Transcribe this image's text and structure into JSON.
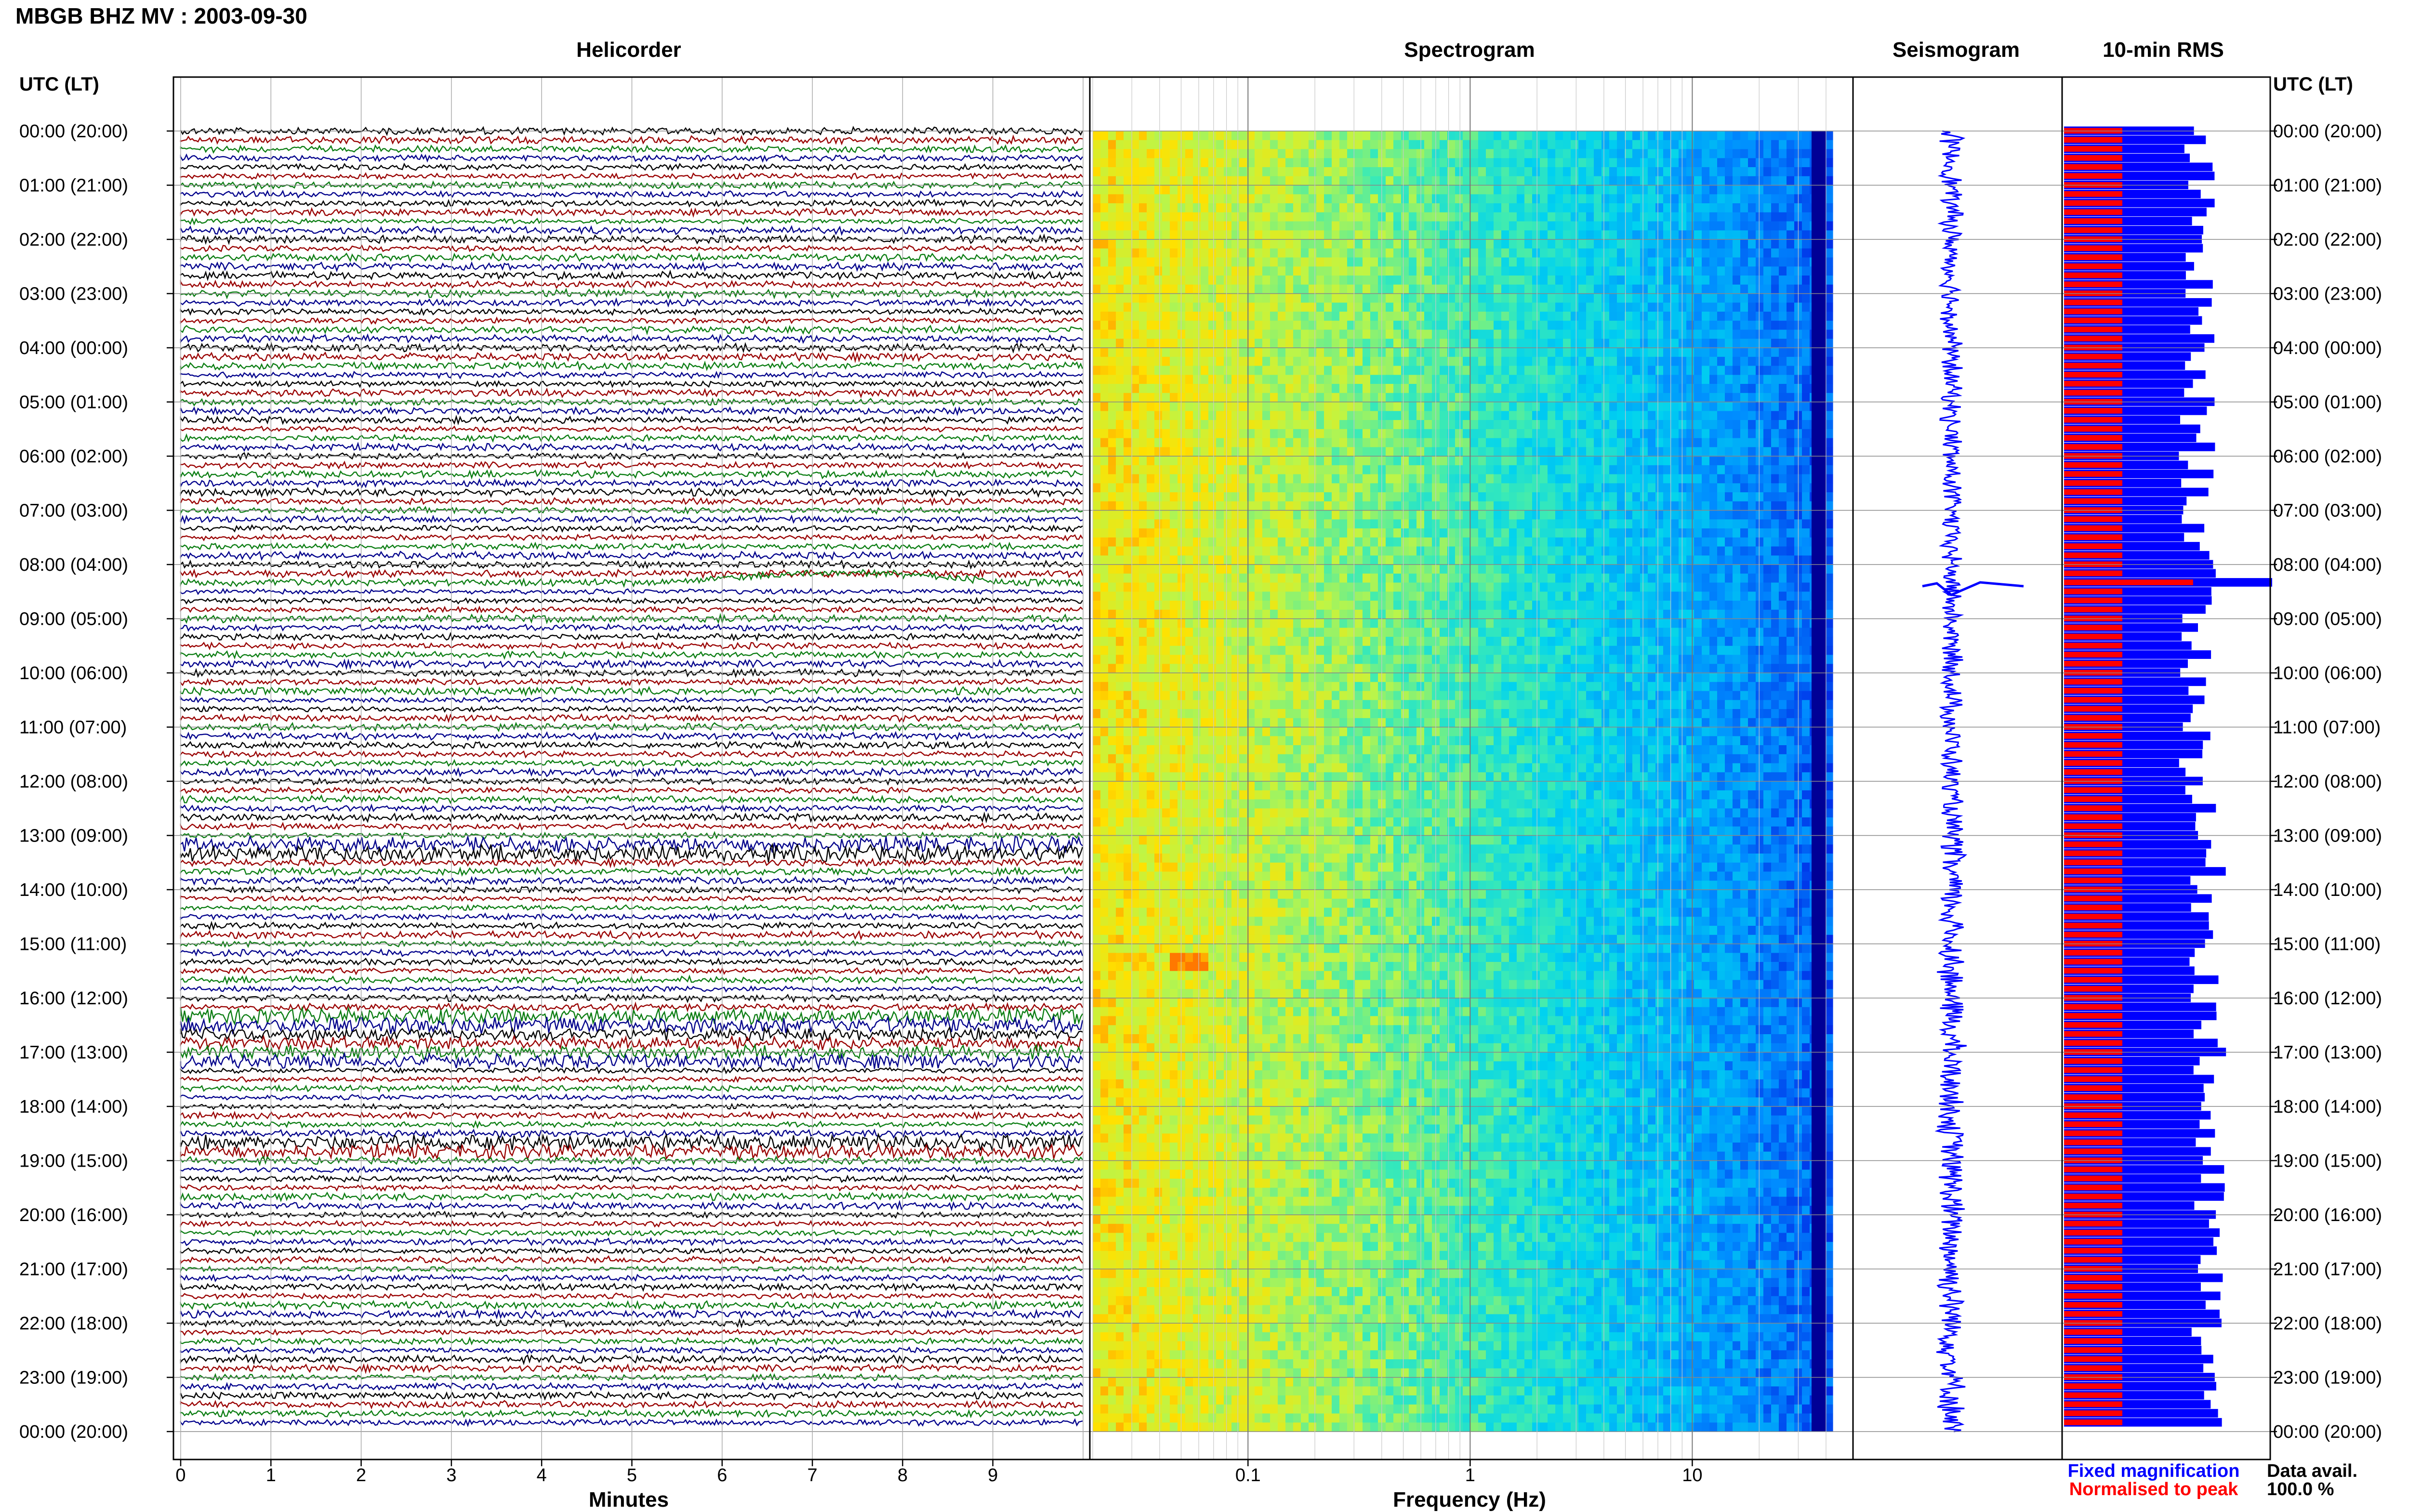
{
  "title": "MBGB BHZ MV : 2003-09-30",
  "panels": {
    "helicorder": "Helicorder",
    "spectrogram": "Spectrogram",
    "seismogram": "Seismogram",
    "rms": "10-min RMS"
  },
  "axis_labels": {
    "left_header": "UTC (LT)",
    "right_header": "UTC (LT)",
    "minutes": "Minutes",
    "frequency": "Frequency (Hz)"
  },
  "legend": {
    "fixed": "Fixed magnification",
    "normalised": "Normalised to peak",
    "fixed_color": "#0000ff",
    "normalised_color": "#ff0000"
  },
  "data_avail": {
    "label": "Data avail.",
    "value": "100.0 %"
  },
  "colors": {
    "trace_colors": [
      "#000000",
      "#990000",
      "#0b7d12",
      "#00008b"
    ],
    "seismogram": "#0000ff",
    "rms_fixed": "#0000ff",
    "rms_norm": "#ff0000"
  },
  "chart_data": {
    "type": "heatmap",
    "time_labels": [
      "00:00 (20:00)",
      "01:00 (21:00)",
      "02:00 (22:00)",
      "03:00 (23:00)",
      "04:00 (00:00)",
      "05:00 (01:00)",
      "06:00 (02:00)",
      "07:00 (03:00)",
      "08:00 (04:00)",
      "09:00 (05:00)",
      "10:00 (06:00)",
      "11:00 (07:00)",
      "12:00 (08:00)",
      "13:00 (09:00)",
      "14:00 (10:00)",
      "15:00 (11:00)",
      "16:00 (12:00)",
      "17:00 (13:00)",
      "18:00 (14:00)",
      "19:00 (15:00)",
      "20:00 (16:00)",
      "21:00 (17:00)",
      "22:00 (18:00)",
      "23:00 (19:00)",
      "00:00 (20:00)"
    ],
    "minutes_ticks": [
      "0",
      "1",
      "2",
      "3",
      "4",
      "5",
      "6",
      "7",
      "8",
      "9"
    ],
    "minutes_range": [
      0,
      10
    ],
    "frequency_ticks": [
      "0.1",
      "1",
      "10"
    ],
    "frequency_range": [
      0.02,
      40
    ],
    "frequency_scale": "log",
    "traces_per_hour": 6,
    "hours": 24,
    "rms_event_hour": 8.4,
    "rms_fixed_range": [
      0.55,
      0.95
    ],
    "rms_norm_fraction": 0.28
  }
}
